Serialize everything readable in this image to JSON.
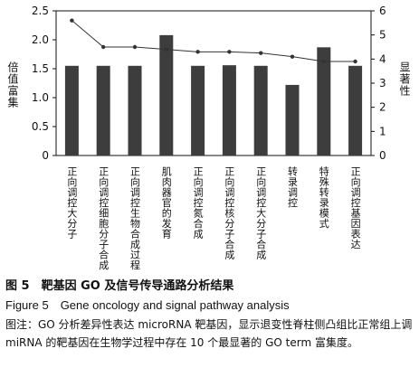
{
  "chart_data": {
    "type": "bar",
    "categories": [
      "正向调控大分子",
      "正向调控细胞分子合成",
      "正向调控生物合成过程",
      "肌肉器官的发育",
      "正向调控氮合成",
      "正向调控核分子合成",
      "正向调控大分子合成",
      "转录调控",
      "特殊转录模式",
      "正向调控基因表达"
    ],
    "series": [
      {
        "axis": "left",
        "kind": "bar",
        "values": [
          1.55,
          1.55,
          1.55,
          2.08,
          1.55,
          1.56,
          1.55,
          1.22,
          1.87,
          1.55
        ]
      },
      {
        "axis": "right",
        "kind": "line",
        "values": [
          5.6,
          4.5,
          4.5,
          4.4,
          4.3,
          4.3,
          4.25,
          4.1,
          3.9,
          3.9
        ]
      }
    ],
    "ylabel": "倍值富集",
    "y2label": "显著性",
    "ylim": [
      0,
      2.5
    ],
    "y2lim": [
      0,
      6
    ],
    "yticks": [
      "0",
      "0.5",
      "1.0",
      "1.5",
      "2.0",
      "2.5"
    ],
    "y2ticks": [
      "0",
      "1",
      "2",
      "3",
      "4",
      "5",
      "6"
    ],
    "colors": {
      "bar": "#3d3d3d",
      "line": "#333333",
      "axis": "#111111"
    }
  },
  "caption": {
    "title": "图 5　靶基因 GO 及信号传导通路分析结果",
    "title_en": "Figure 5　Gene oncology and signal pathway analysis",
    "note": "图注：GO 分析差异性表达 microRNA 靶基因，显示退变性脊柱侧凸组比正常组上调 miRNA 的靶基因在生物学过程中存在 10 个最显著的 GO term 富集度。"
  }
}
